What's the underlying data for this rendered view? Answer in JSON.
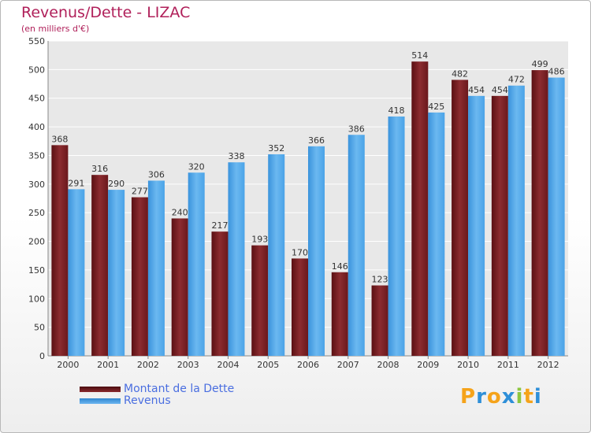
{
  "header": {
    "title": "Revenus/Dette - LIZAC",
    "subtitle": "(en milliers d'€)"
  },
  "logo": {
    "letters": [
      {
        "ch": "P",
        "color": "#f5a31a"
      },
      {
        "ch": "r",
        "color": "#2e8fd8"
      },
      {
        "ch": "o",
        "color": "#f5a31a"
      },
      {
        "ch": "x",
        "color": "#2e8fd8"
      },
      {
        "ch": "i",
        "color": "#8dc63f"
      },
      {
        "ch": "t",
        "color": "#f5a31a"
      },
      {
        "ch": "i",
        "color": "#2e8fd8"
      }
    ]
  },
  "colors": {
    "dette": "#7b1e22",
    "revenus": "#4aa3e8",
    "grid": "#ffffff",
    "plot_bg": "#e8e8e8"
  },
  "chart_data": {
    "type": "bar",
    "title": "Revenus/Dette - LIZAC",
    "subtitle": "(en milliers d'€)",
    "categories": [
      "2000",
      "2001",
      "2002",
      "2003",
      "2004",
      "2005",
      "2006",
      "2007",
      "2008",
      "2009",
      "2010",
      "2011",
      "2012"
    ],
    "series": [
      {
        "name": "Montant de la Dette",
        "values": [
          368,
          316,
          277,
          240,
          217,
          193,
          170,
          146,
          123,
          514,
          482,
          454,
          499
        ]
      },
      {
        "name": "Revenus",
        "values": [
          291,
          290,
          306,
          320,
          338,
          352,
          366,
          386,
          418,
          425,
          454,
          472,
          486
        ]
      }
    ],
    "ylim": [
      0,
      550
    ],
    "yticks": [
      0,
      50,
      100,
      150,
      200,
      250,
      300,
      350,
      400,
      450,
      500,
      550
    ],
    "grid": true,
    "legend": "bottom-left"
  }
}
